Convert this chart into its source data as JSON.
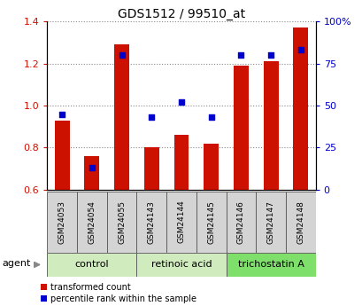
{
  "title": "GDS1512 / 99510_at",
  "samples": [
    "GSM24053",
    "GSM24054",
    "GSM24055",
    "GSM24143",
    "GSM24144",
    "GSM24145",
    "GSM24146",
    "GSM24147",
    "GSM24148"
  ],
  "red_values": [
    0.93,
    0.76,
    1.29,
    0.8,
    0.86,
    0.82,
    1.19,
    1.21,
    1.37
  ],
  "blue_values": [
    45,
    13,
    80,
    43,
    52,
    43,
    80,
    80,
    83
  ],
  "ylim_left": [
    0.6,
    1.4
  ],
  "ylim_right": [
    0,
    100
  ],
  "yticks_left": [
    0.6,
    0.8,
    1.0,
    1.2,
    1.4
  ],
  "yticks_right": [
    0,
    25,
    50,
    75,
    100
  ],
  "ytick_labels_right": [
    "0",
    "25",
    "50",
    "75",
    "100%"
  ],
  "groups": [
    {
      "label": "control",
      "indices": [
        0,
        1,
        2
      ],
      "color": "#d0ecbe"
    },
    {
      "label": "retinoic acid",
      "indices": [
        3,
        4,
        5
      ],
      "color": "#d0ecbe"
    },
    {
      "label": "trichostatin A",
      "indices": [
        6,
        7,
        8
      ],
      "color": "#7ee06a"
    }
  ],
  "agent_label": "agent",
  "red_color": "#cc1100",
  "blue_color": "#0000cc",
  "legend_red": "transformed count",
  "legend_blue": "percentile rank within the sample",
  "bar_width": 0.5,
  "grid_color": "#888888",
  "tick_label_bg": "#d4d4d4"
}
